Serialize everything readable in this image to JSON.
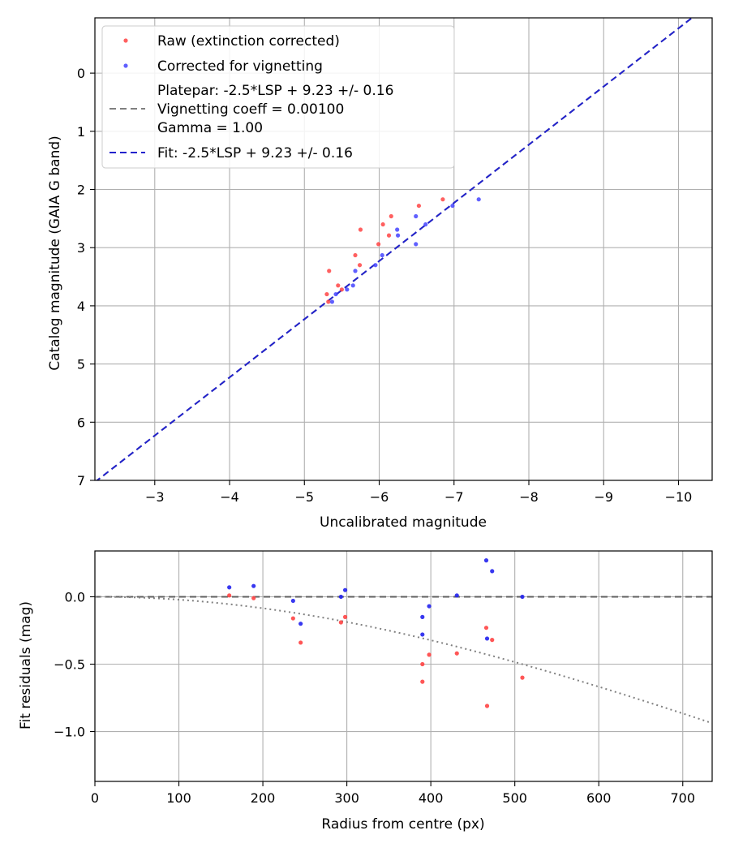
{
  "chart_data": [
    {
      "type": "scatter",
      "xlabel": "Uncalibrated magnitude",
      "ylabel": "Catalog magnitude (GAIA G band)",
      "xlim": [
        -2.2,
        -10.45
      ],
      "ylim": [
        7.0,
        -0.95
      ],
      "xticks": [
        -3,
        -4,
        -5,
        -6,
        -7,
        -8,
        -9,
        -10
      ],
      "yticks": [
        0,
        1,
        2,
        3,
        4,
        5,
        6,
        7
      ],
      "tick_labels_x": [
        "−3",
        "−4",
        "−5",
        "−6",
        "−7",
        "−8",
        "−9",
        "−10"
      ],
      "tick_labels_y": [
        "0",
        "1",
        "2",
        "3",
        "4",
        "5",
        "6",
        "7"
      ],
      "grid": true,
      "legend_position": "top-left",
      "legend": {
        "raw": "Raw (extinction corrected)",
        "corrected": "Corrected for vignetting",
        "platepar_line1": "Platepar: -2.5*LSP + 9.23 +/- 0.16",
        "platepar_line2": "Vignetting coeff = 0.00100",
        "platepar_line3": "Gamma = 1.00",
        "fit": "Fit: -2.5*LSP + 9.23 +/- 0.16"
      },
      "fit_line": {
        "slope": 1,
        "intercept": 9.23,
        "color": "#2222cc"
      },
      "platepar_line": {
        "slope": 1,
        "intercept": 9.23,
        "color": "#808080"
      },
      "series": [
        {
          "name": "Raw (extinction corrected)",
          "color": "#ff4444",
          "points": [
            [
              -6.85,
              2.17
            ],
            [
              -6.53,
              2.28
            ],
            [
              -6.16,
              2.46
            ],
            [
              -6.05,
              2.6
            ],
            [
              -5.75,
              2.69
            ],
            [
              -6.13,
              2.79
            ],
            [
              -5.99,
              2.94
            ],
            [
              -5.68,
              3.13
            ],
            [
              -5.74,
              3.3
            ],
            [
              -5.33,
              3.4
            ],
            [
              -5.45,
              3.65
            ],
            [
              -5.5,
              3.72
            ],
            [
              -5.3,
              3.8
            ],
            [
              -5.32,
              3.93
            ]
          ]
        },
        {
          "name": "Corrected for vignetting",
          "color": "#4444ff",
          "points": [
            [
              -7.33,
              2.17
            ],
            [
              -6.98,
              2.28
            ],
            [
              -6.49,
              2.46
            ],
            [
              -6.62,
              2.6
            ],
            [
              -6.24,
              2.69
            ],
            [
              -6.25,
              2.79
            ],
            [
              -6.49,
              2.94
            ],
            [
              -6.04,
              3.13
            ],
            [
              -5.95,
              3.3
            ],
            [
              -5.68,
              3.4
            ],
            [
              -5.65,
              3.65
            ],
            [
              -5.57,
              3.72
            ],
            [
              -5.42,
              3.8
            ],
            [
              -5.37,
              3.93
            ]
          ]
        }
      ]
    },
    {
      "type": "scatter",
      "xlabel": "Radius from centre (px)",
      "ylabel": "Fit residuals (mag)",
      "xlim": [
        0,
        735
      ],
      "ylim": [
        -1.37,
        0.34
      ],
      "xticks": [
        0,
        100,
        200,
        300,
        400,
        500,
        600,
        700
      ],
      "yticks": [
        0.0,
        -0.5,
        -1.0
      ],
      "tick_labels_x": [
        "0",
        "100",
        "200",
        "300",
        "400",
        "500",
        "600",
        "700"
      ],
      "tick_labels_y": [
        "0.0",
        "−0.5",
        "−1.0"
      ],
      "grid": true,
      "zero_line": {
        "y": 0,
        "color": "#606060"
      },
      "vignetting_curve": {
        "coeff": 0.001,
        "gamma": 1.0,
        "color": "#808080"
      },
      "series": [
        {
          "name": "Raw (extinction corrected)",
          "color": "#ff4444",
          "points": [
            [
              160,
              0.01
            ],
            [
              189,
              -0.01
            ],
            [
              236,
              -0.16
            ],
            [
              245,
              -0.34
            ],
            [
              293,
              -0.19
            ],
            [
              298,
              -0.15
            ],
            [
              390,
              -0.5
            ],
            [
              390,
              -0.63
            ],
            [
              398,
              -0.43
            ],
            [
              431,
              -0.42
            ],
            [
              466,
              -0.23
            ],
            [
              467,
              -0.81
            ],
            [
              473,
              -0.32
            ],
            [
              509,
              -0.6
            ]
          ]
        },
        {
          "name": "Corrected for vignetting",
          "color": "#2222ee",
          "points": [
            [
              160,
              0.07
            ],
            [
              189,
              0.08
            ],
            [
              236,
              -0.03
            ],
            [
              245,
              -0.2
            ],
            [
              293,
              0.0
            ],
            [
              298,
              0.05
            ],
            [
              390,
              -0.15
            ],
            [
              390,
              -0.28
            ],
            [
              398,
              -0.07
            ],
            [
              431,
              0.01
            ],
            [
              466,
              0.27
            ],
            [
              467,
              -0.31
            ],
            [
              473,
              0.19
            ],
            [
              509,
              0.0
            ]
          ]
        }
      ]
    }
  ]
}
